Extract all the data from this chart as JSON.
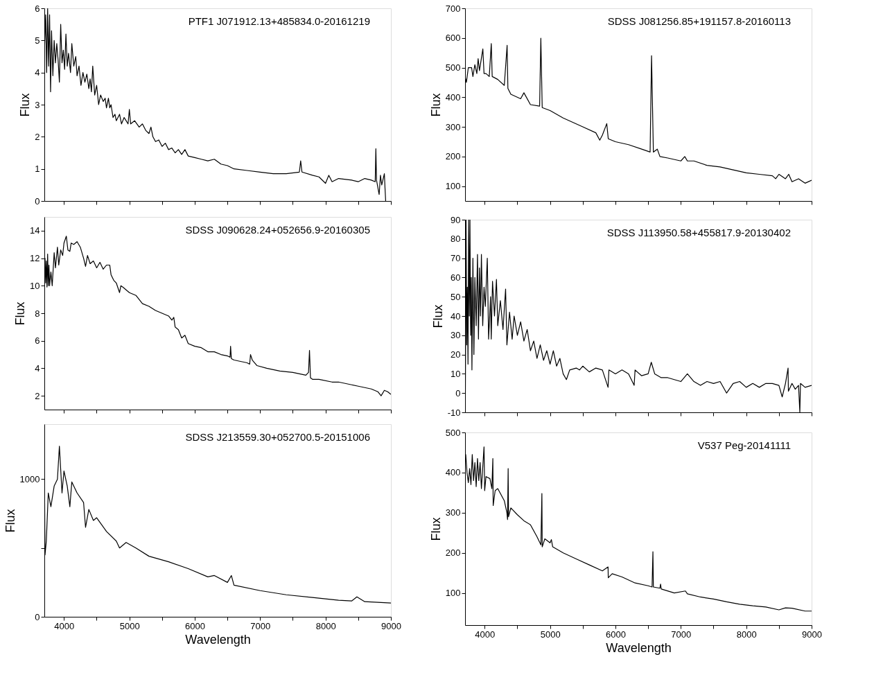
{
  "chart_data": [
    {
      "type": "line",
      "title": "PTF1 J071912.13+485834.0-20161219",
      "ylabel": "Flux",
      "color": "#000000",
      "tick_labels": "y",
      "xlim": [
        3700,
        9000
      ],
      "xticks": [
        4000,
        {
          "value": 4500,
          "label": null
        },
        5000,
        {
          "value": 5500,
          "label": null
        },
        6000,
        {
          "value": 6500,
          "label": null
        },
        7000,
        {
          "value": 7500,
          "label": null
        },
        8000,
        {
          "value": 8500,
          "label": null
        },
        9000
      ],
      "ylim": [
        0,
        6
      ],
      "yticks": [
        0,
        1,
        2,
        3,
        4,
        5,
        6
      ],
      "x": [
        3700,
        3720,
        3735,
        3750,
        3765,
        3780,
        3795,
        3810,
        3830,
        3850,
        3870,
        3890,
        3910,
        3930,
        3950,
        3970,
        3990,
        4010,
        4030,
        4050,
        4070,
        4100,
        4120,
        4150,
        4180,
        4200,
        4230,
        4260,
        4290,
        4320,
        4350,
        4380,
        4400,
        4420,
        4440,
        4470,
        4500,
        4530,
        4560,
        4600,
        4630,
        4650,
        4680,
        4700,
        4720,
        4750,
        4780,
        4800,
        4850,
        4880,
        4920,
        4950,
        4980,
        5000,
        5020,
        5080,
        5150,
        5200,
        5250,
        5300,
        5330,
        5360,
        5400,
        5450,
        5500,
        5550,
        5600,
        5650,
        5700,
        5750,
        5800,
        5850,
        5900,
        6000,
        6100,
        6200,
        6300,
        6400,
        6500,
        6600,
        6800,
        7000,
        7200,
        7400,
        7600,
        7620,
        7640,
        7800,
        7900,
        8000,
        8050,
        8100,
        8200,
        8400,
        8500,
        8600,
        8700,
        8760,
        8770,
        8780,
        8820,
        8840,
        8860,
        8900,
        8910,
        8920
      ],
      "values": [
        4.6,
        5.8,
        4.0,
        6.0,
        4.2,
        5.8,
        3.4,
        5.3,
        3.9,
        5.0,
        4.3,
        4.9,
        4.4,
        3.7,
        5.5,
        4.3,
        4.7,
        4.1,
        5.2,
        4.2,
        4.6,
        4.0,
        4.9,
        4.2,
        4.5,
        3.9,
        4.2,
        3.6,
        4.0,
        3.7,
        3.95,
        3.5,
        3.8,
        3.4,
        4.2,
        3.3,
        3.6,
        3.0,
        3.3,
        3.1,
        3.2,
        2.9,
        3.2,
        2.9,
        3.0,
        2.6,
        2.7,
        2.5,
        2.7,
        2.4,
        2.6,
        2.5,
        2.4,
        2.85,
        2.4,
        2.5,
        2.3,
        2.4,
        2.2,
        2.1,
        2.3,
        2.0,
        1.85,
        1.9,
        1.7,
        1.8,
        1.6,
        1.65,
        1.5,
        1.6,
        1.45,
        1.6,
        1.4,
        1.35,
        1.3,
        1.25,
        1.3,
        1.15,
        1.1,
        1.0,
        0.95,
        0.9,
        0.85,
        0.85,
        0.9,
        1.25,
        0.9,
        0.8,
        0.75,
        0.55,
        0.8,
        0.6,
        0.7,
        0.65,
        0.6,
        0.7,
        0.65,
        0.6,
        1.63,
        0.65,
        0.2,
        0.8,
        0.5,
        0.85,
        0.4,
        0.0
      ]
    },
    {
      "type": "line",
      "title": "SDSS J081256.85+191157.8-20160113",
      "ylabel": "Flux",
      "color": "#000000",
      "tick_labels": "y",
      "xlim": [
        3700,
        9000
      ],
      "xticks": [
        4000,
        {
          "value": 4500,
          "label": null
        },
        5000,
        {
          "value": 5500,
          "label": null
        },
        6000,
        {
          "value": 6500,
          "label": null
        },
        7000,
        {
          "value": 7500,
          "label": null
        },
        8000,
        {
          "value": 8500,
          "label": null
        },
        9000
      ],
      "ylim": [
        50,
        700
      ],
      "yticks": [
        100,
        200,
        300,
        400,
        500,
        600,
        700
      ],
      "x": [
        3700,
        3720,
        3750,
        3800,
        3820,
        3850,
        3880,
        3900,
        3920,
        3972,
        3990,
        4020,
        4070,
        4101,
        4115,
        4200,
        4300,
        4343,
        4355,
        4400,
        4550,
        4600,
        4700,
        4840,
        4859,
        4880,
        5000,
        5200,
        5500,
        5700,
        5760,
        5800,
        5867,
        5890,
        6000,
        6200,
        6400,
        6530,
        6552,
        6580,
        6640,
        6680,
        6800,
        7000,
        7060,
        7100,
        7200,
        7400,
        7600,
        7800,
        8000,
        8200,
        8400,
        8450,
        8500,
        8600,
        8650,
        8700,
        8800,
        8900,
        9000
      ],
      "values": [
        470,
        450,
        500,
        500,
        470,
        510,
        480,
        530,
        490,
        563,
        480,
        480,
        470,
        581,
        470,
        460,
        440,
        575,
        430,
        410,
        395,
        415,
        375,
        370,
        599,
        365,
        355,
        330,
        300,
        280,
        255,
        272,
        311,
        260,
        250,
        240,
        225,
        215,
        540,
        215,
        225,
        200,
        195,
        185,
        200,
        185,
        185,
        170,
        165,
        155,
        145,
        140,
        135,
        125,
        140,
        125,
        140,
        115,
        125,
        110,
        120
      ]
    },
    {
      "type": "line",
      "title": "SDSS J090628.24+052656.9-20160305",
      "ylabel": "Flux",
      "color": "#000000",
      "tick_labels": "y",
      "xlim": [
        3700,
        9000
      ],
      "xticks": [
        4000,
        {
          "value": 4500,
          "label": null
        },
        5000,
        {
          "value": 5500,
          "label": null
        },
        6000,
        {
          "value": 6500,
          "label": null
        },
        7000,
        {
          "value": 7500,
          "label": null
        },
        8000,
        {
          "value": 8500,
          "label": null
        },
        9000
      ],
      "ylim": [
        1,
        15
      ],
      "yticks": [
        2,
        4,
        6,
        8,
        10,
        12,
        14
      ],
      "x": [
        3700,
        3710,
        3720,
        3730,
        3740,
        3750,
        3760,
        3770,
        3780,
        3800,
        3820,
        3850,
        3870,
        3900,
        3920,
        3950,
        3980,
        4000,
        4036,
        4060,
        4090,
        4110,
        4150,
        4200,
        4250,
        4300,
        4330,
        4360,
        4400,
        4450,
        4500,
        4550,
        4600,
        4650,
        4700,
        4720,
        4760,
        4800,
        4850,
        4870,
        4900,
        5000,
        5100,
        5200,
        5300,
        5400,
        5500,
        5600,
        5650,
        5680,
        5700,
        5750,
        5800,
        5850,
        5900,
        6000,
        6100,
        6200,
        6300,
        6400,
        6500,
        6540,
        6548,
        6560,
        6600,
        6700,
        6800,
        6840,
        6853,
        6880,
        6950,
        7100,
        7300,
        7500,
        7700,
        7740,
        7755,
        7770,
        7800,
        7900,
        8100,
        8200,
        8400,
        8500,
        8600,
        8700,
        8800,
        8850,
        8900,
        8950,
        9000
      ],
      "values": [
        10,
        12,
        10.2,
        11.8,
        9.9,
        12.3,
        10,
        11.5,
        10,
        11,
        10,
        12.4,
        11.3,
        12.8,
        11.5,
        12.6,
        12.2,
        13.1,
        13.6,
        12.6,
        12.5,
        13.1,
        13.0,
        13.2,
        12.8,
        12.0,
        11.4,
        12.2,
        11.6,
        11.8,
        11.3,
        11.7,
        11.2,
        11.5,
        11.5,
        10.8,
        10.4,
        10.2,
        9.5,
        10,
        9.9,
        9.5,
        9.3,
        8.7,
        8.5,
        8.2,
        8.0,
        7.8,
        7.5,
        7.7,
        7.0,
        6.8,
        6.2,
        6.4,
        5.8,
        5.6,
        5.5,
        5.2,
        5.2,
        5.0,
        4.9,
        4.8,
        5.6,
        4.7,
        4.6,
        4.5,
        4.4,
        4.3,
        5.0,
        4.6,
        4.2,
        4.0,
        3.8,
        3.7,
        3.5,
        3.7,
        5.3,
        3.3,
        3.2,
        3.2,
        3.0,
        3.0,
        2.8,
        2.7,
        2.6,
        2.5,
        2.3,
        2.0,
        2.4,
        2.3,
        2.1
      ]
    },
    {
      "type": "line",
      "title": "SDSS J113950.58+455817.9-20130402",
      "ylabel": "Flux",
      "color": "#000000",
      "tick_labels": "y",
      "xlim": [
        3700,
        9000
      ],
      "xticks": [
        4000,
        {
          "value": 4500,
          "label": null
        },
        5000,
        {
          "value": 5500,
          "label": null
        },
        6000,
        {
          "value": 6500,
          "label": null
        },
        7000,
        {
          "value": 7500,
          "label": null
        },
        8000,
        {
          "value": 8500,
          "label": null
        },
        9000
      ],
      "ylim": [
        -10,
        90
      ],
      "yticks": [
        -10,
        0,
        10,
        20,
        30,
        40,
        50,
        60,
        70,
        80,
        90
      ],
      "x": [
        3700,
        3705,
        3715,
        3725,
        3735,
        3745,
        3755,
        3765,
        3775,
        3785,
        3795,
        3805,
        3820,
        3835,
        3850,
        3870,
        3890,
        3905,
        3920,
        3935,
        3950,
        3970,
        3990,
        4010,
        4040,
        4060,
        4090,
        4100,
        4120,
        4150,
        4180,
        4200,
        4240,
        4280,
        4320,
        4340,
        4380,
        4420,
        4450,
        4500,
        4550,
        4600,
        4650,
        4700,
        4750,
        4800,
        4850,
        4900,
        4950,
        5000,
        5050,
        5100,
        5150,
        5200,
        5250,
        5300,
        5400,
        5450,
        5500,
        5600,
        5700,
        5800,
        5887,
        5900,
        6000,
        6100,
        6200,
        6286,
        6300,
        6400,
        6500,
        6548,
        6600,
        6700,
        6800,
        7000,
        7100,
        7200,
        7300,
        7400,
        7500,
        7600,
        7700,
        7800,
        7900,
        8000,
        8100,
        8200,
        8300,
        8400,
        8500,
        8550,
        8600,
        8640,
        8645,
        8700,
        8750,
        8800,
        8820,
        8830,
        8900,
        9000
      ],
      "values": [
        60,
        0,
        90,
        25,
        55,
        15,
        90,
        40,
        90,
        30,
        60,
        12,
        70,
        20,
        60,
        35,
        72,
        28,
        65,
        40,
        72,
        35,
        55,
        45,
        70,
        28,
        50,
        28,
        58,
        40,
        59,
        35,
        48,
        33,
        54,
        25,
        42,
        28,
        40,
        30,
        37,
        27,
        33,
        22,
        27,
        18,
        25,
        17,
        22,
        15,
        22,
        14,
        18,
        10,
        7,
        12,
        13,
        12,
        14,
        11,
        13,
        12,
        3,
        12,
        10,
        12,
        10,
        4,
        12,
        9,
        10,
        16,
        10,
        8,
        8,
        6,
        10,
        6,
        4,
        6,
        5,
        6,
        0,
        5,
        6,
        3,
        5,
        3,
        5,
        5,
        4,
        -2,
        5,
        13,
        1,
        5,
        2,
        4,
        -10,
        5,
        3,
        4
      ]
    },
    {
      "type": "line",
      "title": "SDSS J213559.30+052700.5-20151006",
      "xlabel": "Wavelength",
      "ylabel": "Flux",
      "color": "#000000",
      "xlim": [
        3700,
        9000
      ],
      "xticks": [
        4000,
        {
          "value": 4500,
          "label": null
        },
        5000,
        {
          "value": 5500,
          "label": null
        },
        6000,
        {
          "value": 6500,
          "label": null
        },
        7000,
        {
          "value": 7500,
          "label": null
        },
        8000,
        {
          "value": 8500,
          "label": null
        },
        9000
      ],
      "ylim": [
        0,
        1400
      ],
      "yticks": [
        0,
        {
          "value": 500,
          "label": null
        },
        1000
      ],
      "x": [
        3700,
        3710,
        3730,
        3760,
        3800,
        3850,
        3900,
        3930,
        3970,
        4000,
        4050,
        4090,
        4120,
        4200,
        4300,
        4330,
        4380,
        4450,
        4500,
        4650,
        4800,
        4850,
        4950,
        5100,
        5300,
        5600,
        5900,
        6200,
        6300,
        6500,
        6560,
        6600,
        7000,
        7400,
        7800,
        8200,
        8400,
        8480,
        8600,
        9000
      ],
      "values": [
        1150,
        450,
        550,
        900,
        800,
        950,
        1000,
        1240,
        900,
        1060,
        950,
        800,
        980,
        900,
        830,
        650,
        780,
        700,
        720,
        620,
        550,
        500,
        540,
        500,
        440,
        400,
        350,
        290,
        300,
        250,
        300,
        230,
        190,
        160,
        140,
        120,
        115,
        145,
        110,
        100
      ]
    },
    {
      "type": "line",
      "title": "V537 Peg-20141111",
      "xlabel": "Wavelength",
      "ylabel": "Flux",
      "color": "#000000",
      "xlim": [
        3700,
        9000
      ],
      "xticks": [
        4000,
        {
          "value": 4500,
          "label": null
        },
        5000,
        {
          "value": 5500,
          "label": null
        },
        6000,
        {
          "value": 6500,
          "label": null
        },
        7000,
        {
          "value": 7500,
          "label": null
        },
        8000,
        {
          "value": 8500,
          "label": null
        },
        9000
      ],
      "ylim": [
        20,
        500
      ],
      "yticks": [
        100,
        200,
        300,
        400,
        500
      ],
      "x": [
        3700,
        3710,
        3730,
        3750,
        3770,
        3790,
        3810,
        3830,
        3850,
        3870,
        3890,
        3910,
        3930,
        3950,
        3990,
        4000,
        4020,
        4080,
        4110,
        4125,
        4130,
        4160,
        4200,
        4300,
        4340,
        4350,
        4359,
        4365,
        4400,
        4500,
        4600,
        4700,
        4800,
        4860,
        4875,
        4880,
        4920,
        5000,
        5020,
        5040,
        5200,
        5400,
        5600,
        5800,
        5887,
        5890,
        5950,
        6100,
        6300,
        6500,
        6560,
        6573,
        6580,
        6680,
        6690,
        6700,
        6900,
        7070,
        7100,
        7300,
        7500,
        7700,
        7900,
        8100,
        8300,
        8500,
        8600,
        8700,
        8900,
        9000
      ],
      "values": [
        420,
        445,
        400,
        375,
        410,
        370,
        445,
        380,
        425,
        365,
        435,
        380,
        425,
        360,
        464,
        355,
        390,
        385,
        360,
        435,
        318,
        355,
        360,
        330,
        300,
        283,
        410,
        290,
        312,
        295,
        280,
        270,
        240,
        220,
        348,
        215,
        235,
        225,
        233,
        215,
        200,
        185,
        170,
        155,
        165,
        138,
        148,
        140,
        125,
        118,
        115,
        203,
        115,
        112,
        122,
        110,
        100,
        105,
        98,
        90,
        85,
        78,
        72,
        68,
        65,
        58,
        63,
        62,
        55,
        55
      ]
    }
  ]
}
